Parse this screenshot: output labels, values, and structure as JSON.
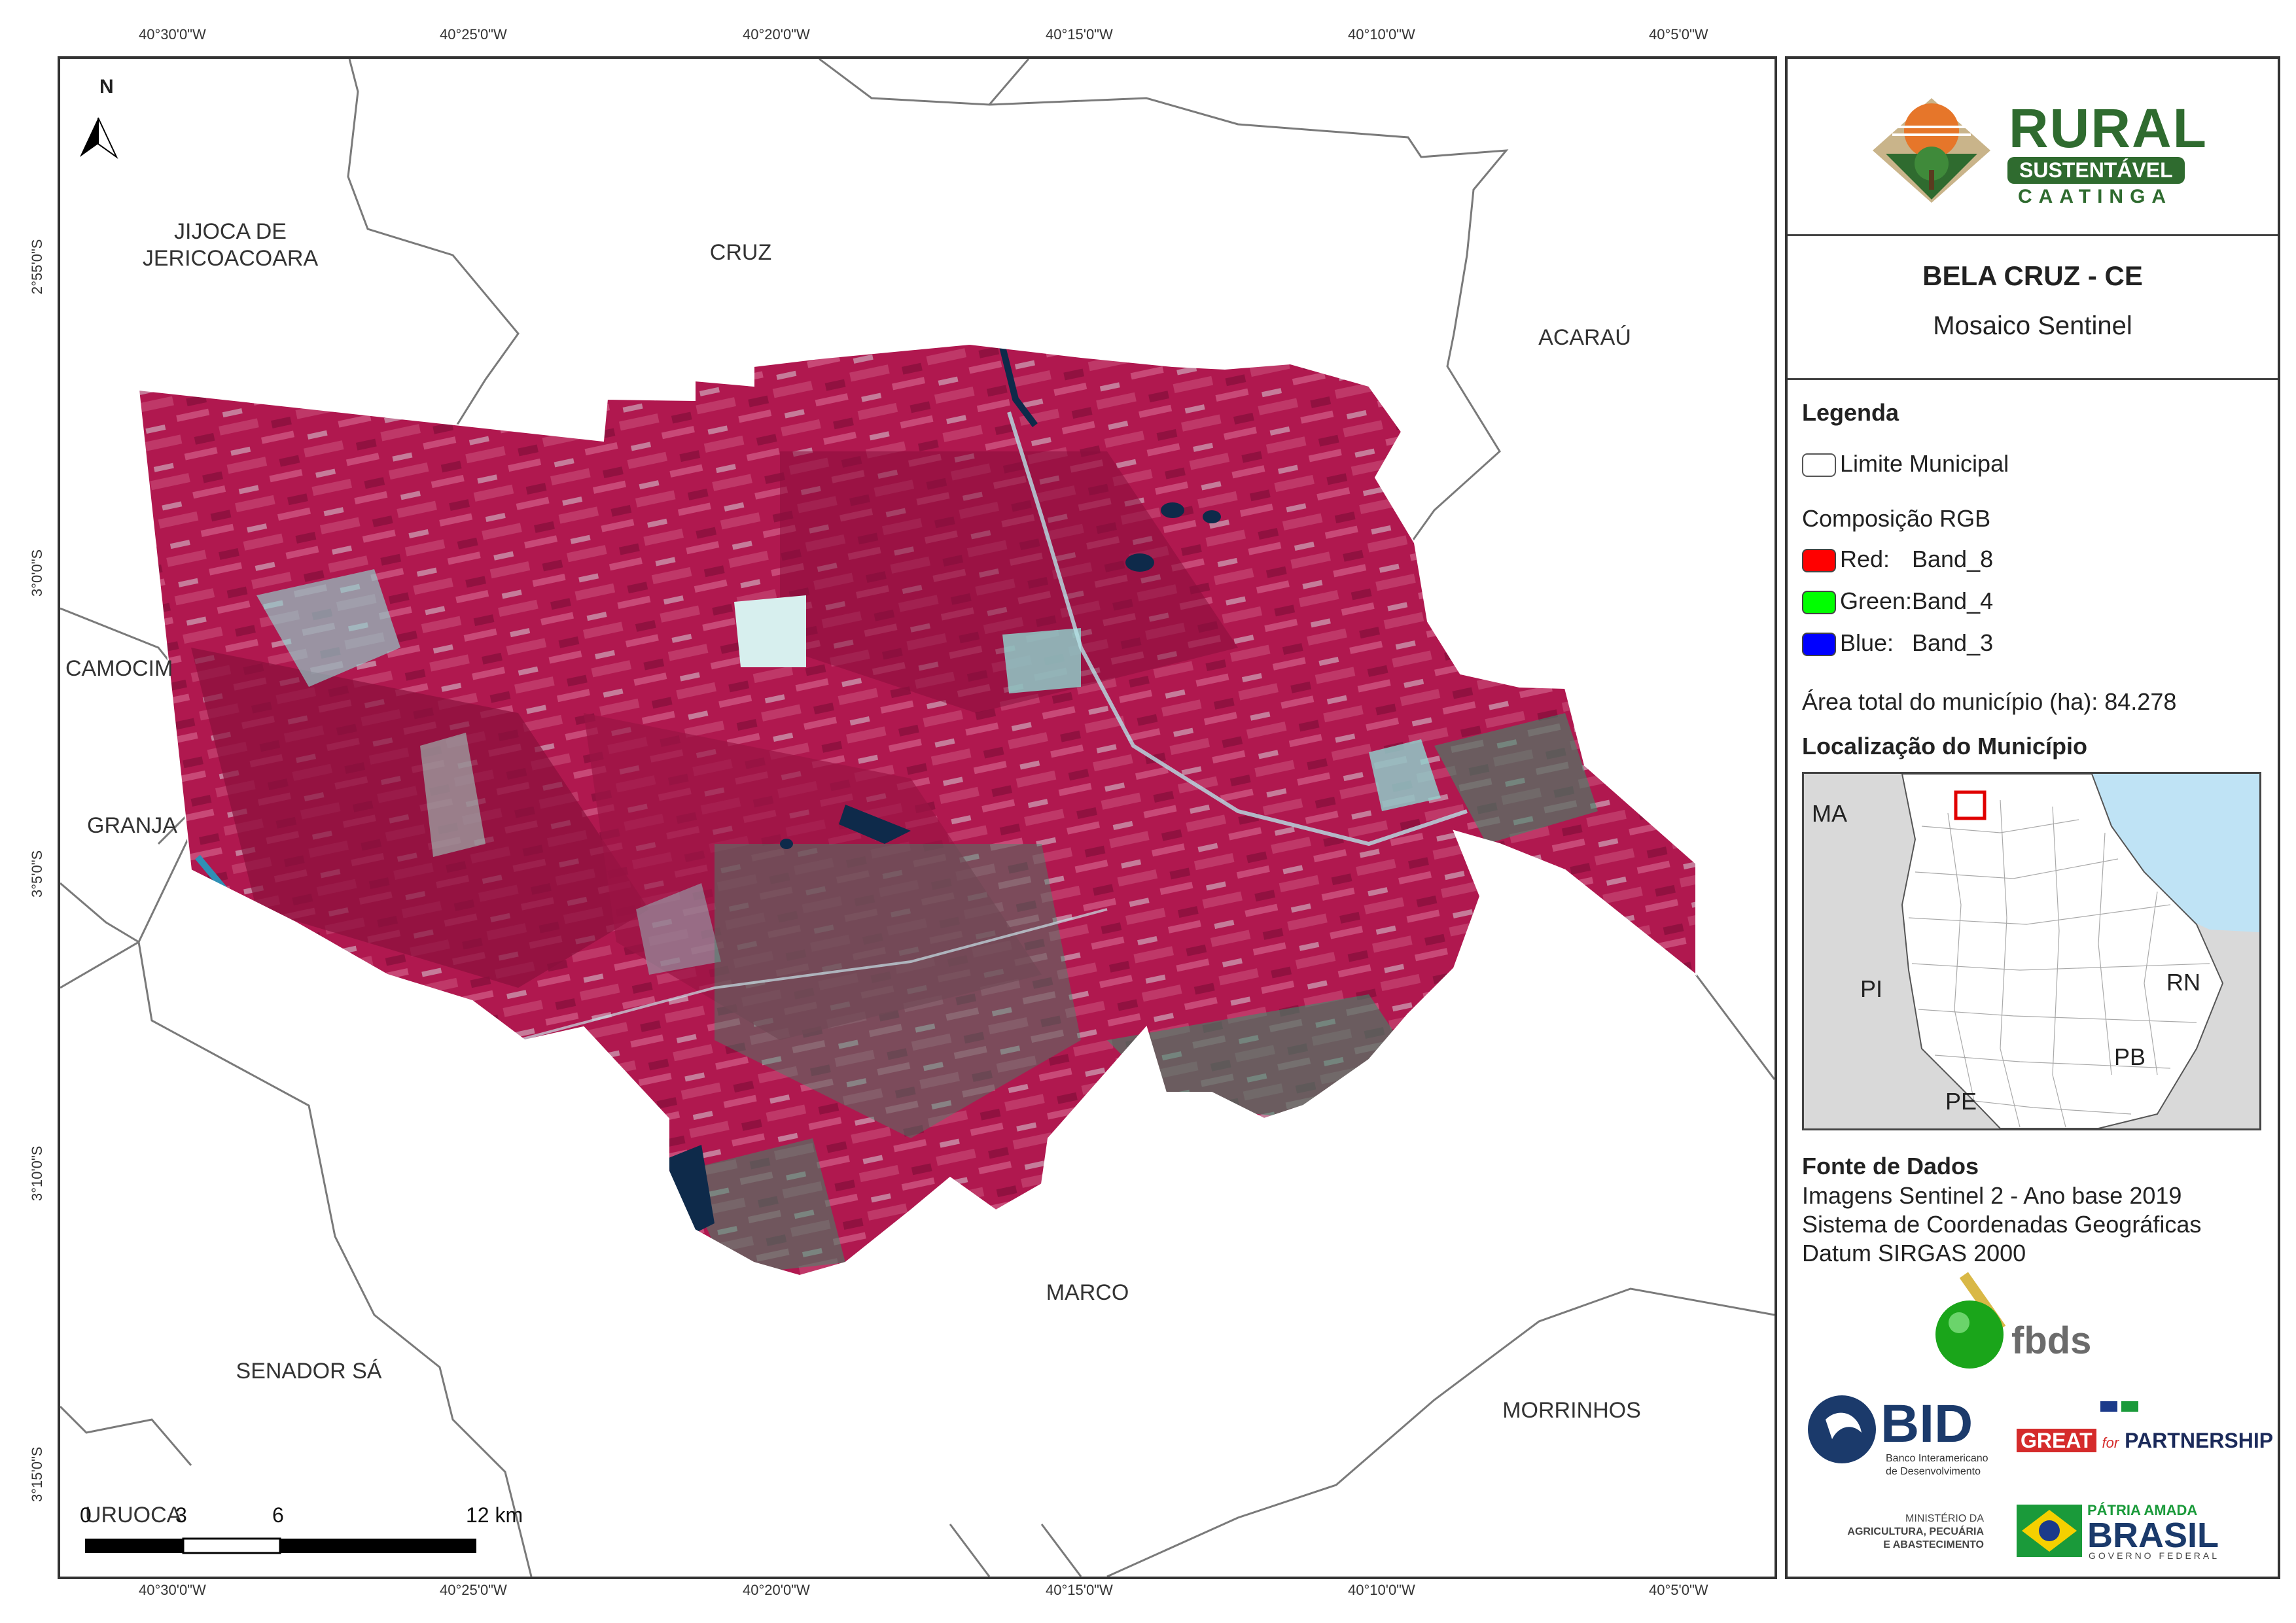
{
  "coordinates": {
    "longitudes": [
      "40°30'0\"W",
      "40°25'0\"W",
      "40°20'0\"W",
      "40°15'0\"W",
      "40°10'0\"W",
      "40°5'0\"W"
    ],
    "latitudes": [
      "2°55'0\"S",
      "3°0'0\"S",
      "3°5'0\"S",
      "3°10'0\"S",
      "3°15'0\"S"
    ]
  },
  "map": {
    "north_label": "N",
    "municipalities": {
      "jijoca_line1": "JIJOCA DE",
      "jijoca_line2": "JERICOACOARA",
      "cruz": "CRUZ",
      "acarau": "ACARAÚ",
      "camocim": "CAMOCIM",
      "granja": "GRANJA",
      "marco": "MARCO",
      "senador_sa": "SENADOR SÁ",
      "morrinhos": "MORRINHOS",
      "uruoca": "URUOCA"
    },
    "scale_labels": [
      "0",
      "3",
      "6",
      "12 km"
    ]
  },
  "panel": {
    "logo": {
      "title": "RURAL",
      "banner": "SUSTENTÁVEL",
      "sub": "CAATINGA"
    },
    "title": "BELA CRUZ - CE",
    "subtitle": "Mosaico Sentinel",
    "legend": {
      "heading": "Legenda",
      "limit_label": "Limite Municipal",
      "rgb_heading": "Composição RGB",
      "bands": [
        {
          "channel": "Red:",
          "band": "Band_8",
          "color": "#ff0000"
        },
        {
          "channel": "Green:",
          "band": "Band_4",
          "color": "#00ff00"
        },
        {
          "channel": "Blue:",
          "band": "Band_3",
          "color": "#0000ff"
        }
      ],
      "area_label": "Área total do município (ha):",
      "area_value": "84.278"
    },
    "location": {
      "heading": "Localização do Município",
      "states": [
        "MA",
        "PI",
        "RN",
        "PB",
        "PE"
      ]
    },
    "sources": {
      "heading": "Fonte de Dados",
      "lines": [
        "Imagens Sentinel 2 - Ano base 2019",
        "Sistema de Coordenadas Geográficas",
        "Datum SIRGAS 2000"
      ]
    },
    "logos": {
      "fbds": "fbds",
      "bid": "BID",
      "bid_sub1": "Banco Interamericano",
      "bid_sub2": "de Desenvolvimento",
      "great": "GREAT",
      "for": "for",
      "partnership": "PARTNERSHIP",
      "ministerio1": "MINISTÉRIO DA",
      "ministerio2": "AGRICULTURA, PECUÁRIA",
      "ministerio3": "E ABASTECIMENTO",
      "patria": "PÁTRIA AMADA",
      "brasil": "BRASIL",
      "governo": "GOVERNO FEDERAL"
    }
  },
  "colors": {
    "vegetation": "#b0184f",
    "vegetation_dark": "#8a0f3c",
    "bare_soil": "#8fd6d0",
    "water": "#0e2a4a",
    "ocean": "#bfe3f5",
    "land_gray": "#d9d9d9",
    "logo_green": "#2f6b2f"
  }
}
